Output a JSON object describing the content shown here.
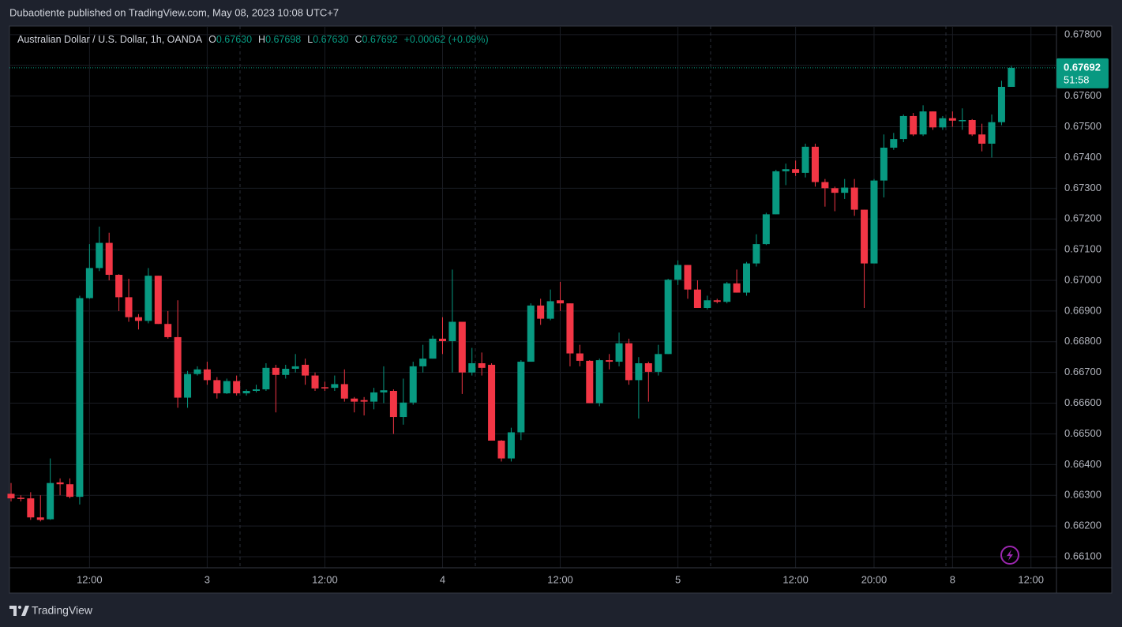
{
  "header": {
    "title": "Dubaotiente published on TradingView.com, May 08, 2023 10:08 UTC+7"
  },
  "chart_data": {
    "type": "candlestick",
    "legend": {
      "symbol": "Australian Dollar / U.S. Dollar, 1h, OANDA",
      "items": [
        {
          "key": "O",
          "value": "0.67630"
        },
        {
          "key": "H",
          "value": "0.67698"
        },
        {
          "key": "L",
          "value": "0.67630"
        },
        {
          "key": "C",
          "value": "0.67692"
        }
      ],
      "change": "+0.00062 (+0.09%)"
    },
    "up_color": "#089981",
    "down_color": "#f23645",
    "open": [
      0.66305,
      0.66292,
      0.6629,
      0.66228,
      0.66222,
      0.66342,
      0.66336,
      0.66295,
      0.66942,
      0.6704,
      0.67122,
      0.67018,
      0.66945,
      0.6688,
      0.66868,
      0.67015,
      0.66858,
      0.66815,
      0.66618,
      0.66695,
      0.6671,
      0.66675,
      0.66632,
      0.66672,
      0.66632,
      0.6664,
      0.66645,
      0.66715,
      0.66692,
      0.66712,
      0.66725,
      0.6669,
      0.66652,
      0.6665,
      0.66662,
      0.66615,
      0.6661,
      0.66605,
      0.66635,
      0.6664,
      0.66555,
      0.66602,
      0.6672,
      0.66745,
      0.6681,
      0.66802,
      0.66865,
      0.667,
      0.6673,
      0.66725,
      0.66478,
      0.6642,
      0.66505,
      0.66735,
      0.66918,
      0.66875,
      0.66935,
      0.66925,
      0.66762,
      0.66738,
      0.666,
      0.6674,
      0.66735,
      0.66795,
      0.66675,
      0.6673,
      0.66702,
      0.6676,
      0.67002,
      0.6705,
      0.6697,
      0.6691,
      0.66935,
      0.6693,
      0.6699,
      0.6696,
      0.67055,
      0.67118,
      0.67215,
      0.67355,
      0.67362,
      0.6735,
      0.67435,
      0.6732,
      0.673,
      0.67285,
      0.67302,
      0.6723,
      0.67055,
      0.67325,
      0.67432,
      0.6746,
      0.67535,
      0.67475,
      0.6755,
      0.67498,
      0.67528,
      0.67518,
      0.67522,
      0.67475,
      0.67445,
      0.67515,
      0.6763
    ],
    "high": [
      0.6634,
      0.663,
      0.6631,
      0.663,
      0.6642,
      0.66355,
      0.66355,
      0.6695,
      0.67118,
      0.67175,
      0.67155,
      0.6702,
      0.67005,
      0.6689,
      0.6704,
      0.67015,
      0.669,
      0.66935,
      0.66705,
      0.6672,
      0.66735,
      0.66685,
      0.6668,
      0.6669,
      0.66645,
      0.6666,
      0.6673,
      0.66725,
      0.66725,
      0.6676,
      0.66745,
      0.667,
      0.6667,
      0.6669,
      0.6671,
      0.6662,
      0.6662,
      0.6665,
      0.6672,
      0.66645,
      0.6668,
      0.66735,
      0.6679,
      0.6682,
      0.6688,
      0.67035,
      0.66865,
      0.6678,
      0.66765,
      0.6673,
      0.6648,
      0.6652,
      0.6674,
      0.66925,
      0.6694,
      0.6697,
      0.66995,
      0.66925,
      0.6679,
      0.6674,
      0.66745,
      0.6676,
      0.6683,
      0.6681,
      0.6675,
      0.66735,
      0.6679,
      0.67005,
      0.67065,
      0.6705,
      0.67,
      0.6695,
      0.6694,
      0.66995,
      0.67035,
      0.6706,
      0.6715,
      0.6722,
      0.6736,
      0.6738,
      0.6739,
      0.67445,
      0.67445,
      0.6733,
      0.67305,
      0.6733,
      0.6733,
      0.6723,
      0.6733,
      0.67475,
      0.6748,
      0.6754,
      0.67545,
      0.6757,
      0.6755,
      0.67535,
      0.6755,
      0.6756,
      0.67525,
      0.6751,
      0.6754,
      0.6765,
      0.67698
    ],
    "low": [
      0.6628,
      0.6628,
      0.6622,
      0.66215,
      0.6622,
      0.663,
      0.6629,
      0.6627,
      0.6694,
      0.6703,
      0.67,
      0.669,
      0.66865,
      0.6684,
      0.6686,
      0.66858,
      0.6681,
      0.66585,
      0.66585,
      0.6669,
      0.6666,
      0.66615,
      0.6663,
      0.66625,
      0.66625,
      0.66635,
      0.6664,
      0.6657,
      0.6668,
      0.667,
      0.6666,
      0.6664,
      0.6664,
      0.6664,
      0.66605,
      0.6657,
      0.6656,
      0.6658,
      0.666,
      0.665,
      0.6653,
      0.66595,
      0.667,
      0.66745,
      0.6676,
      0.667,
      0.6663,
      0.6669,
      0.6669,
      0.66478,
      0.6641,
      0.6641,
      0.6648,
      0.66735,
      0.66855,
      0.6687,
      0.669,
      0.6672,
      0.6672,
      0.666,
      0.6659,
      0.6671,
      0.6672,
      0.6666,
      0.6655,
      0.66605,
      0.6669,
      0.6676,
      0.66985,
      0.6694,
      0.6691,
      0.66905,
      0.66925,
      0.66925,
      0.6696,
      0.6695,
      0.67045,
      0.67115,
      0.67215,
      0.6731,
      0.6734,
      0.67335,
      0.67305,
      0.6724,
      0.67225,
      0.67265,
      0.6721,
      0.6691,
      0.67055,
      0.6727,
      0.67425,
      0.6745,
      0.6747,
      0.6747,
      0.6749,
      0.6749,
      0.675,
      0.6749,
      0.6747,
      0.6742,
      0.674,
      0.67505,
      0.6763
    ],
    "close": [
      0.6629,
      0.66288,
      0.66228,
      0.6622,
      0.6634,
      0.66336,
      0.66295,
      0.66942,
      0.6704,
      0.67122,
      0.67018,
      0.66945,
      0.6688,
      0.66868,
      0.67015,
      0.66858,
      0.66815,
      0.66618,
      0.66695,
      0.6671,
      0.66675,
      0.66632,
      0.66672,
      0.66632,
      0.6664,
      0.66645,
      0.66715,
      0.66692,
      0.66712,
      0.6672,
      0.6669,
      0.66648,
      0.66648,
      0.66662,
      0.66615,
      0.66605,
      0.66605,
      0.66635,
      0.66642,
      0.66555,
      0.66602,
      0.6672,
      0.66745,
      0.6681,
      0.66802,
      0.66865,
      0.667,
      0.6673,
      0.66715,
      0.66478,
      0.6642,
      0.66505,
      0.66735,
      0.66918,
      0.66875,
      0.66932,
      0.66925,
      0.66762,
      0.66738,
      0.666,
      0.6674,
      0.66735,
      0.66795,
      0.66675,
      0.6673,
      0.66702,
      0.6676,
      0.67002,
      0.6705,
      0.6697,
      0.6691,
      0.66935,
      0.6693,
      0.6699,
      0.6696,
      0.67055,
      0.67118,
      0.67215,
      0.67355,
      0.67362,
      0.6735,
      0.67435,
      0.6732,
      0.673,
      0.67285,
      0.67302,
      0.6723,
      0.67055,
      0.67325,
      0.67432,
      0.6746,
      0.67535,
      0.67475,
      0.6755,
      0.67498,
      0.67528,
      0.6752,
      0.67522,
      0.67475,
      0.67445,
      0.67515,
      0.6763,
      0.67692
    ],
    "xlim": [
      -0.16,
      106.6
    ],
    "xticks": [
      {
        "value": 8,
        "label": "12:00"
      },
      {
        "value": 20,
        "label": "3"
      },
      {
        "value": 32,
        "label": "12:00"
      },
      {
        "value": 44,
        "label": "4"
      },
      {
        "value": 56,
        "label": "12:00"
      },
      {
        "value": 68,
        "label": "5"
      },
      {
        "value": 80,
        "label": "12:00"
      },
      {
        "value": 88,
        "label": "20:00"
      },
      {
        "value": 96,
        "label": "8"
      },
      {
        "value": 104,
        "label": "12:00"
      }
    ],
    "ylim": [
      0.66064,
      0.67828
    ],
    "yticks": [
      {
        "value": 0.661,
        "label": "0.66100"
      },
      {
        "value": 0.662,
        "label": "0.66200"
      },
      {
        "value": 0.663,
        "label": "0.66300"
      },
      {
        "value": 0.664,
        "label": "0.66400"
      },
      {
        "value": 0.665,
        "label": "0.66500"
      },
      {
        "value": 0.666,
        "label": "0.66600"
      },
      {
        "value": 0.667,
        "label": "0.66700"
      },
      {
        "value": 0.668,
        "label": "0.66800"
      },
      {
        "value": 0.669,
        "label": "0.66900"
      },
      {
        "value": 0.67,
        "label": "0.67000"
      },
      {
        "value": 0.671,
        "label": "0.67100"
      },
      {
        "value": 0.672,
        "label": "0.67200"
      },
      {
        "value": 0.673,
        "label": "0.67300"
      },
      {
        "value": 0.674,
        "label": "0.67400"
      },
      {
        "value": 0.675,
        "label": "0.67500"
      },
      {
        "value": 0.676,
        "label": "0.67600"
      },
      {
        "value": 0.677,
        "label": "0.67700"
      },
      {
        "value": 0.678,
        "label": "0.67800"
      }
    ],
    "grid": true,
    "last_price_label": "0.67692",
    "countdown": "51:58"
  },
  "footer": {
    "brand": "TradingView"
  }
}
